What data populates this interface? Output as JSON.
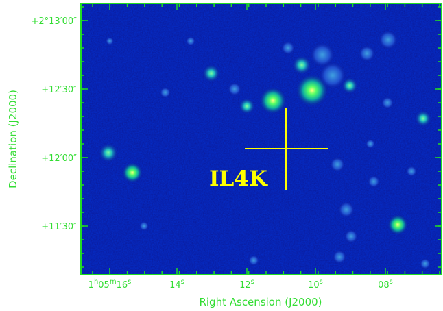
{
  "figure": {
    "frame_color": "#22dd22",
    "background_color": "#0a1a9a",
    "xlabel": "Right Ascension (J2000)",
    "ylabel": "Declination (J2000)",
    "x_ticks": [
      {
        "h": "1",
        "m": "05",
        "s": "16"
      },
      {
        "s": "14"
      },
      {
        "s": "12"
      },
      {
        "s": "10"
      },
      {
        "s": "08"
      }
    ],
    "y_ticks": [
      "+2°13′00″",
      "+12′30″",
      "+12′00″",
      "+11′30″"
    ],
    "target": {
      "label": "IL4K",
      "crosshair_color": "#ffff00"
    }
  }
}
